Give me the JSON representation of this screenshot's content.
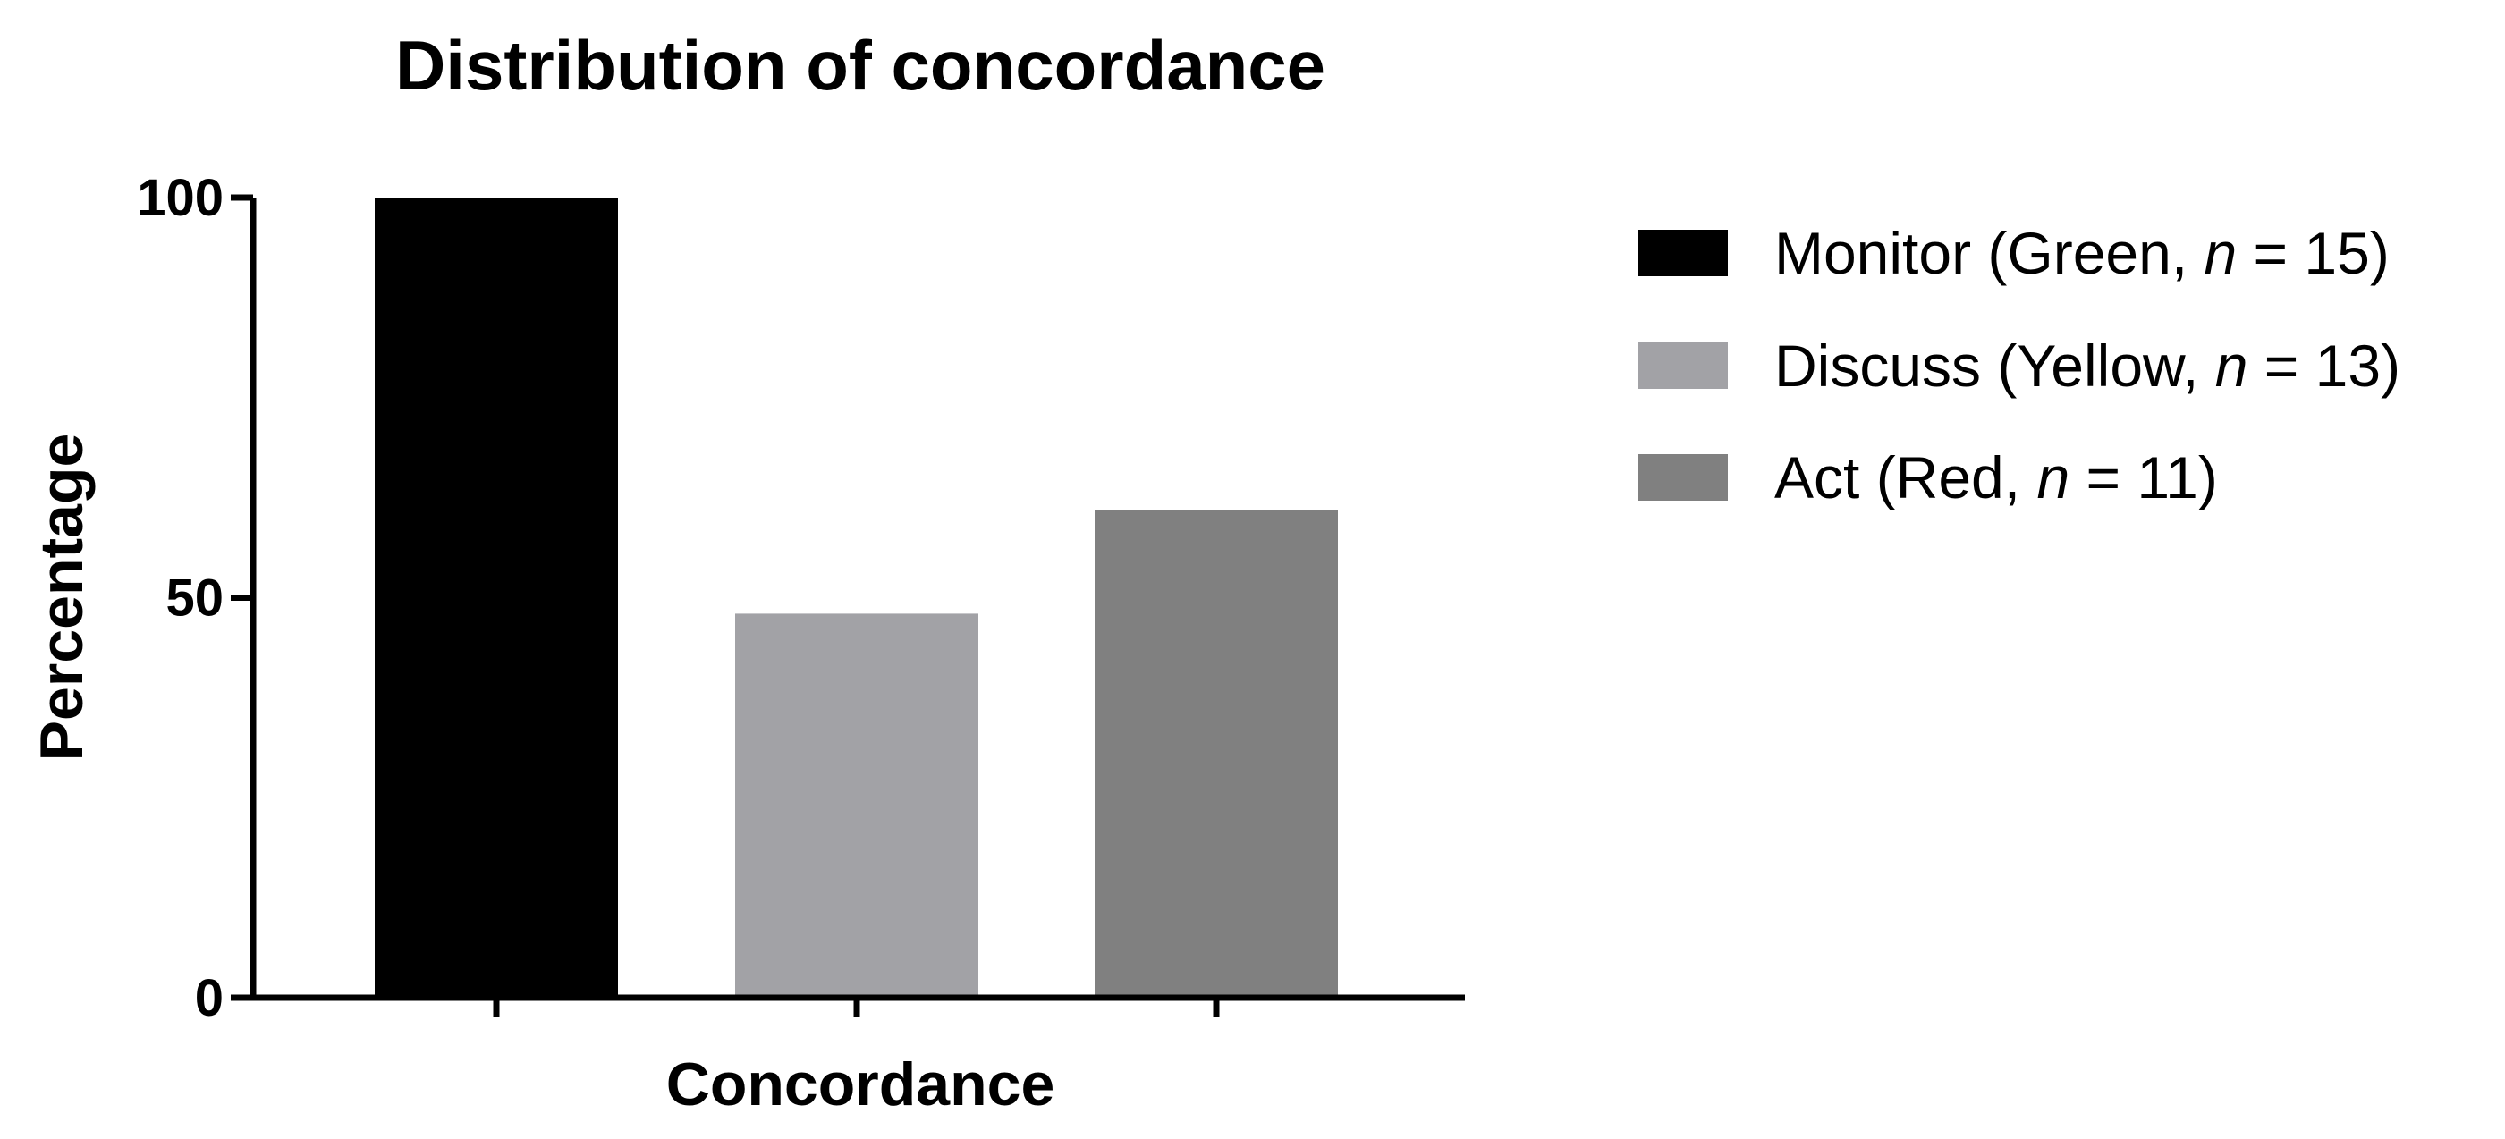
{
  "chart_data": {
    "type": "bar",
    "title": "Distribution of concordance",
    "xlabel": "Concordance",
    "ylabel": "Percentage",
    "ylim": [
      0,
      100
    ],
    "yticks": [
      "0",
      "50",
      "100"
    ],
    "grid": false,
    "legend_position": "right",
    "series": [
      {
        "name": "Monitor (Green, n = 15)",
        "label_main": "Monitor (Green,",
        "label_n": "n",
        "label_rest": "= 15)",
        "value": 100,
        "color": "#000000"
      },
      {
        "name": "Discuss (Yellow, n = 13)",
        "label_main": "Discuss (Yellow,",
        "label_n": "n",
        "label_rest": "= 13)",
        "value": 48,
        "color": "#a2a2a6"
      },
      {
        "name": "Act (Red, n = 11)",
        "label_main": "Act (Red,",
        "label_n": "n",
        "label_rest": "= 11)",
        "value": 61,
        "color": "#808080"
      }
    ]
  }
}
